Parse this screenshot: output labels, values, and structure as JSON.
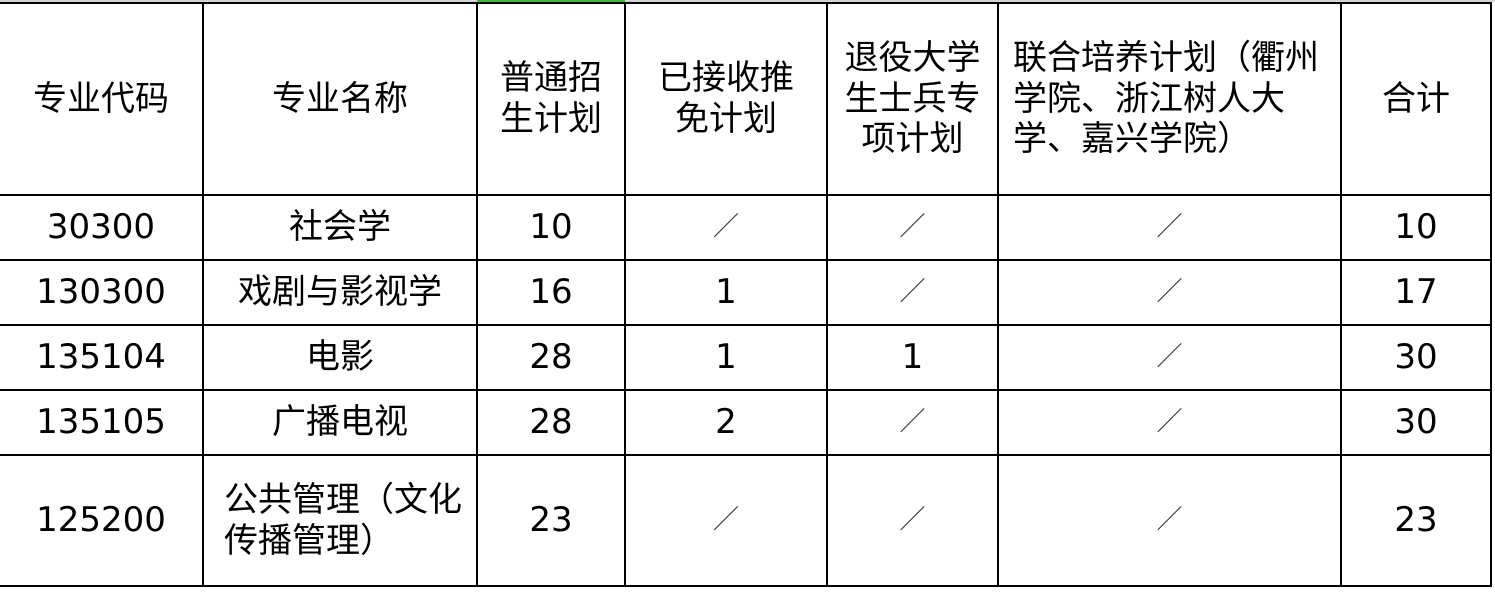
{
  "table": {
    "headers": [
      "专业代码",
      "专业名称",
      "普通招生计划",
      "已接收推免计划",
      "退役大学生士兵专项计划",
      "联合培养计划（衢州学院、浙江树人大学、嘉兴学院）",
      "合计"
    ],
    "rows": [
      [
        "30300",
        "社会学",
        "10",
        "／",
        "／",
        "／",
        "10"
      ],
      [
        "130300",
        "戏剧与影视学",
        "16",
        "1",
        "／",
        "／",
        "17"
      ],
      [
        "135104",
        "电影",
        "28",
        "1",
        "1",
        "／",
        "30"
      ],
      [
        "135105",
        "广播电视",
        "28",
        "2",
        "／",
        "／",
        "30"
      ],
      [
        "125200",
        "公共管理（文化传播管理）",
        "23",
        "／",
        "／",
        "／",
        "23"
      ]
    ]
  },
  "colors": {
    "selected_column_indicator": "#4caf50",
    "grid": "#000000"
  }
}
